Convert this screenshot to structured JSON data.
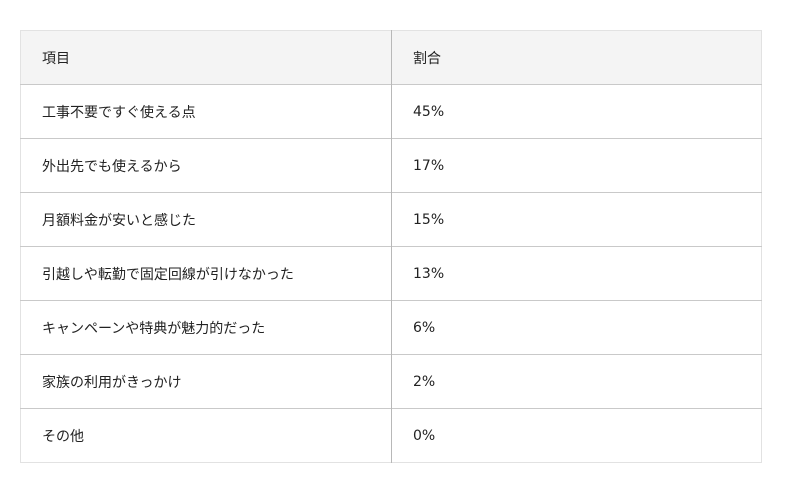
{
  "table": {
    "headers": [
      "項目",
      "割合"
    ],
    "rows": [
      {
        "item": "工事不要ですぐ使える点",
        "ratio": "45%"
      },
      {
        "item": "外出先でも使えるから",
        "ratio": "17%"
      },
      {
        "item": "月額料金が安いと感じた",
        "ratio": "15%"
      },
      {
        "item": "引越しや転勤で固定回線が引けなかった",
        "ratio": "13%"
      },
      {
        "item": "キャンペーンや特典が魅力的だった",
        "ratio": "6%"
      },
      {
        "item": "家族の利用がきっかけ",
        "ratio": "2%"
      },
      {
        "item": "その他",
        "ratio": "0%"
      }
    ]
  }
}
